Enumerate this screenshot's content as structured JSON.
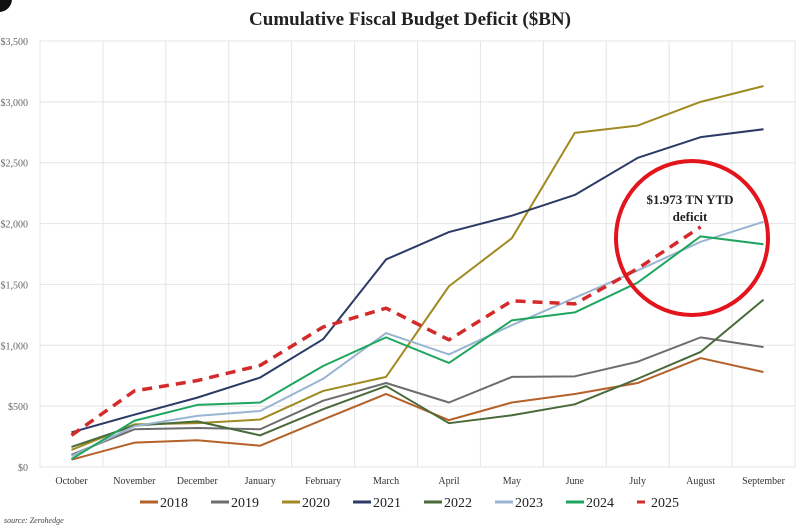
{
  "chart_data": {
    "type": "line",
    "title": "Cumulative Fiscal Budget Deficit ($BN)",
    "xlabel": "",
    "ylabel": "",
    "ylim": [
      0,
      3500
    ],
    "y_ticks": [
      "$0",
      "$500",
      "$1,000",
      "$1,500",
      "$2,000",
      "$2,500",
      "$3,000",
      "$3,500"
    ],
    "y_tick_values": [
      0,
      500,
      1000,
      1500,
      2000,
      2500,
      3000,
      3500
    ],
    "grid": true,
    "legend_position": "bottom",
    "categories": [
      "October",
      "November",
      "December",
      "January",
      "February",
      "March",
      "April",
      "May",
      "June",
      "July",
      "August",
      "September"
    ],
    "series": [
      {
        "name": "2018",
        "color": "#b5622a",
        "dashed": false,
        "values": [
          60,
          200,
          220,
          175,
          390,
          600,
          385,
          530,
          600,
          690,
          895,
          780
        ]
      },
      {
        "name": "2019",
        "color": "#6d6d6d",
        "dashed": false,
        "values": [
          100,
          310,
          320,
          310,
          545,
          690,
          530,
          740,
          745,
          865,
          1065,
          985
        ]
      },
      {
        "name": "2020",
        "color": "#a08a22",
        "dashed": false,
        "values": [
          140,
          350,
          360,
          390,
          625,
          740,
          1485,
          1880,
          2745,
          2805,
          3000,
          3130
        ]
      },
      {
        "name": "2021",
        "color": "#2c3a66",
        "dashed": false,
        "values": [
          285,
          430,
          570,
          735,
          1050,
          1705,
          1930,
          2065,
          2235,
          2540,
          2710,
          2775
        ]
      },
      {
        "name": "2022",
        "color": "#4a6a3a",
        "dashed": false,
        "values": [
          165,
          340,
          375,
          260,
          475,
          665,
          360,
          425,
          515,
          725,
          945,
          1375
        ]
      },
      {
        "name": "2023",
        "color": "#9ab5d2",
        "dashed": false,
        "values": [
          90,
          335,
          420,
          460,
          725,
          1100,
          925,
          1165,
          1390,
          1615,
          1850,
          2015
        ]
      },
      {
        "name": "2024",
        "color": "#1fa65e",
        "dashed": false,
        "values": [
          65,
          380,
          510,
          530,
          830,
          1065,
          855,
          1205,
          1270,
          1515,
          1895,
          1830
        ]
      },
      {
        "name": "2025",
        "color": "#d42a2a",
        "dashed": true,
        "values": [
          260,
          625,
          710,
          835,
          1150,
          1305,
          1045,
          1365,
          1340,
          1630,
          1973,
          null
        ]
      }
    ],
    "annotation": {
      "text_line1": "$1.973 TN YTD",
      "text_line2": "deficit",
      "circle_color": "#e3141c"
    },
    "source": "source: Zerohedge"
  }
}
